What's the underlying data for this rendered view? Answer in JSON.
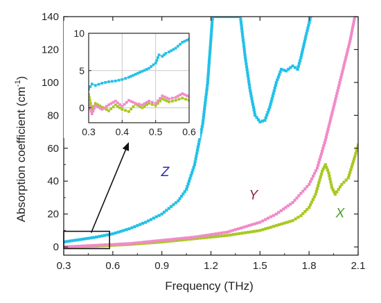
{
  "chart_data": [
    {
      "type": "scatter",
      "xlabel": "Frequency (THz)",
      "ylabel_main": "Absorption coefficient (cm",
      "ylabel_sup": "-1",
      "ylabel_close": ")",
      "xlim": [
        0.3,
        2.1
      ],
      "ylim": [
        -5,
        140
      ],
      "xticks": [
        0.3,
        0.6,
        0.9,
        1.2,
        1.5,
        1.8,
        2.1
      ],
      "xtick_labels": [
        "0.3",
        "0.6",
        "0.9",
        "1.2",
        "1.5",
        "1.8",
        "2.1"
      ],
      "yticks": [
        0,
        20,
        40,
        60,
        80,
        100,
        120,
        140
      ],
      "ytick_labels": [
        "0",
        "20",
        "40",
        "60",
        "80",
        "100",
        "120",
        "140"
      ],
      "grid": false,
      "series": [
        {
          "name": "Z",
          "color": "#22c0e8",
          "x": [
            0.3,
            0.4,
            0.5,
            0.6,
            0.7,
            0.8,
            0.9,
            1.0,
            1.05,
            1.1,
            1.15,
            1.18,
            1.21,
            1.38,
            1.41,
            1.44,
            1.47,
            1.5,
            1.53,
            1.56,
            1.6,
            1.63,
            1.66,
            1.7,
            1.73,
            1.75,
            1.78,
            1.81
          ],
          "y": [
            3,
            4.5,
            6,
            8,
            11,
            15,
            20,
            28,
            35,
            50,
            75,
            100,
            140,
            140,
            115,
            95,
            80,
            76,
            77,
            85,
            100,
            108,
            107,
            110,
            108,
            115,
            128,
            140
          ]
        },
        {
          "name": "Y",
          "color": "#f08ac8",
          "x": [
            0.3,
            0.5,
            0.7,
            0.9,
            1.1,
            1.3,
            1.4,
            1.5,
            1.6,
            1.7,
            1.8,
            1.85,
            1.9,
            1.95,
            2.0,
            2.05,
            2.08
          ],
          "y": [
            0,
            1,
            2,
            4,
            6,
            9,
            12,
            15,
            20,
            27,
            38,
            48,
            65,
            85,
            105,
            125,
            140
          ]
        },
        {
          "name": "X",
          "color": "#a8c820",
          "x": [
            0.3,
            0.5,
            0.7,
            0.9,
            1.1,
            1.3,
            1.5,
            1.6,
            1.7,
            1.75,
            1.8,
            1.84,
            1.88,
            1.9,
            1.92,
            1.94,
            1.96,
            1.98,
            2.0,
            2.04,
            2.08,
            2.1
          ],
          "y": [
            0,
            0.5,
            1.5,
            3,
            5,
            7,
            10,
            13,
            16,
            19,
            24,
            32,
            46,
            50,
            45,
            36,
            32,
            35,
            38,
            42,
            55,
            62
          ]
        }
      ],
      "annotations": [
        {
          "text": "Z",
          "x": 0.92,
          "y": 43,
          "color": "#2a2ab0"
        },
        {
          "text": "Y",
          "x": 1.46,
          "y": 29,
          "color": "#8a1f3a"
        },
        {
          "text": "X",
          "x": 1.99,
          "y": 18,
          "color": "#4c9a2a"
        }
      ],
      "highlight_box": {
        "xlim": [
          0.3,
          0.58
        ],
        "ylim": [
          -1,
          9.5
        ]
      }
    },
    {
      "type": "scatter",
      "role": "inset",
      "xlim": [
        0.3,
        0.6
      ],
      "ylim": [
        -2,
        10
      ],
      "xticks": [
        0.3,
        0.4,
        0.5,
        0.6
      ],
      "xtick_labels": [
        "0.3",
        "0.4",
        "0.5",
        "0.6"
      ],
      "yticks": [
        0,
        5,
        10
      ],
      "ytick_labels": [
        "0",
        "5",
        "10"
      ],
      "grid": true,
      "series": [
        {
          "name": "Z",
          "color": "#22c0e8",
          "x": [
            0.3,
            0.31,
            0.32,
            0.34,
            0.36,
            0.38,
            0.4,
            0.42,
            0.44,
            0.46,
            0.48,
            0.5,
            0.51,
            0.52,
            0.53,
            0.54,
            0.56,
            0.58,
            0.6
          ],
          "y": [
            2.5,
            3.2,
            3.0,
            3.3,
            3.5,
            3.6,
            3.8,
            4.1,
            4.5,
            4.9,
            5.3,
            6.0,
            7.1,
            6.9,
            7.3,
            7.5,
            8.0,
            8.8,
            9.2
          ]
        },
        {
          "name": "Y",
          "color": "#f08ac8",
          "x": [
            0.3,
            0.31,
            0.32,
            0.34,
            0.36,
            0.38,
            0.4,
            0.42,
            0.44,
            0.46,
            0.48,
            0.5,
            0.52,
            0.54,
            0.56,
            0.58,
            0.6
          ],
          "y": [
            0.5,
            -0.8,
            0.3,
            -0.2,
            0.4,
            0.9,
            0.2,
            1.0,
            0.6,
            0.4,
            0.9,
            0.6,
            1.6,
            1.2,
            1.4,
            1.9,
            1.5
          ]
        },
        {
          "name": "X",
          "color": "#a8c820",
          "x": [
            0.3,
            0.31,
            0.32,
            0.34,
            0.36,
            0.38,
            0.4,
            0.42,
            0.44,
            0.46,
            0.48,
            0.5,
            0.52,
            0.54,
            0.56,
            0.58,
            0.6
          ],
          "y": [
            1.8,
            -0.2,
            0.6,
            0.1,
            -0.4,
            0.4,
            -0.2,
            -0.5,
            0.5,
            0.0,
            0.6,
            0.3,
            1.2,
            0.8,
            1.0,
            1.3,
            1.0
          ]
        }
      ]
    }
  ]
}
